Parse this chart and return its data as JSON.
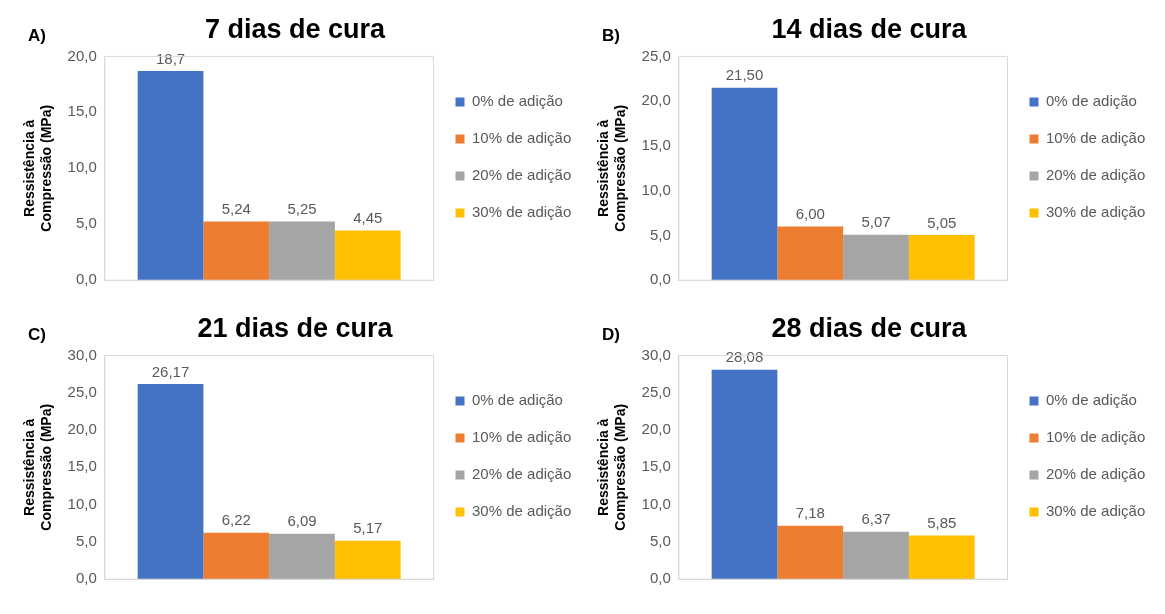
{
  "chart_data": [
    {
      "type": "bar",
      "title": "7 dias de cura",
      "annotations": [
        "A)"
      ],
      "ylabel": "Ressistência à Compressão (MPa)",
      "categories": [
        null
      ],
      "ylim": [
        0,
        20
      ],
      "yticks": [
        {
          "value": 0,
          "label": "0,0"
        },
        {
          "value": 5,
          "label": "5,0"
        },
        {
          "value": 10,
          "label": "10,0"
        },
        {
          "value": 15,
          "label": "15,0"
        },
        {
          "value": 20,
          "label": "20,0"
        }
      ],
      "grid": false,
      "legend": "right",
      "series": [
        {
          "name": "0% de adição",
          "color": "#4472c4",
          "values": [
            18.7
          ],
          "value_labels": [
            "18,7"
          ]
        },
        {
          "name": "10% de adição",
          "color": "#ed7d31",
          "values": [
            5.24
          ],
          "value_labels": [
            "5,24"
          ]
        },
        {
          "name": "20% de adição",
          "color": "#a5a5a5",
          "values": [
            5.25
          ],
          "value_labels": [
            "5,25"
          ]
        },
        {
          "name": "30% de adição",
          "color": "#ffc000",
          "values": [
            4.45
          ],
          "value_labels": [
            "4,45"
          ]
        }
      ]
    },
    {
      "type": "bar",
      "title": "14 dias de cura",
      "annotations": [
        "B)"
      ],
      "ylabel": "Ressistência à Compressão (MPa)",
      "categories": [
        null
      ],
      "ylim": [
        0,
        25
      ],
      "yticks": [
        {
          "value": 0,
          "label": "0,0"
        },
        {
          "value": 5,
          "label": "5,0"
        },
        {
          "value": 10,
          "label": "10,0"
        },
        {
          "value": 15,
          "label": "15,0"
        },
        {
          "value": 20,
          "label": "20,0"
        },
        {
          "value": 25,
          "label": "25,0"
        }
      ],
      "grid": false,
      "legend": "right",
      "series": [
        {
          "name": "0% de adição",
          "color": "#4472c4",
          "values": [
            21.5
          ],
          "value_labels": [
            "21,50"
          ]
        },
        {
          "name": "10% de adição",
          "color": "#ed7d31",
          "values": [
            6.0
          ],
          "value_labels": [
            "6,00"
          ]
        },
        {
          "name": "20% de adição",
          "color": "#a5a5a5",
          "values": [
            5.07
          ],
          "value_labels": [
            "5,07"
          ]
        },
        {
          "name": "30% de adição",
          "color": "#ffc000",
          "values": [
            5.05
          ],
          "value_labels": [
            "5,05"
          ]
        }
      ]
    },
    {
      "type": "bar",
      "title": "21 dias de cura",
      "annotations": [
        "C)"
      ],
      "ylabel": "Ressistência à Compressão (MPa)",
      "categories": [
        null
      ],
      "ylim": [
        0,
        30
      ],
      "yticks": [
        {
          "value": 0,
          "label": "0,0"
        },
        {
          "value": 5,
          "label": "5,0"
        },
        {
          "value": 10,
          "label": "10,0"
        },
        {
          "value": 15,
          "label": "15,0"
        },
        {
          "value": 20,
          "label": "20,0"
        },
        {
          "value": 25,
          "label": "25,0"
        },
        {
          "value": 30,
          "label": "30,0"
        }
      ],
      "grid": false,
      "legend": "right",
      "series": [
        {
          "name": "0% de adição",
          "color": "#4472c4",
          "values": [
            26.17
          ],
          "value_labels": [
            "26,17"
          ]
        },
        {
          "name": "10% de adição",
          "color": "#ed7d31",
          "values": [
            6.22
          ],
          "value_labels": [
            "6,22"
          ]
        },
        {
          "name": "20% de adição",
          "color": "#a5a5a5",
          "values": [
            6.09
          ],
          "value_labels": [
            "6,09"
          ]
        },
        {
          "name": "30% de adição",
          "color": "#ffc000",
          "values": [
            5.17
          ],
          "value_labels": [
            "5,17"
          ]
        }
      ]
    },
    {
      "type": "bar",
      "title": "28 dias de cura",
      "annotations": [
        "D)"
      ],
      "ylabel": "Ressistência à Compressão (MPa)",
      "categories": [
        null
      ],
      "ylim": [
        0,
        30
      ],
      "yticks": [
        {
          "value": 0,
          "label": "0,0"
        },
        {
          "value": 5,
          "label": "5,0"
        },
        {
          "value": 10,
          "label": "10,0"
        },
        {
          "value": 15,
          "label": "15,0"
        },
        {
          "value": 20,
          "label": "20,0"
        },
        {
          "value": 25,
          "label": "25,0"
        },
        {
          "value": 30,
          "label": "30,0"
        }
      ],
      "grid": false,
      "legend": "right",
      "series": [
        {
          "name": "0% de adição",
          "color": "#4472c4",
          "values": [
            28.08
          ],
          "value_labels": [
            "28,08"
          ]
        },
        {
          "name": "10% de adição",
          "color": "#ed7d31",
          "values": [
            7.18
          ],
          "value_labels": [
            "7,18"
          ]
        },
        {
          "name": "20% de adição",
          "color": "#a5a5a5",
          "values": [
            6.37
          ],
          "value_labels": [
            "6,37"
          ]
        },
        {
          "name": "30% de adição",
          "color": "#ffc000",
          "values": [
            5.85
          ],
          "value_labels": [
            "5,85"
          ]
        }
      ]
    }
  ]
}
